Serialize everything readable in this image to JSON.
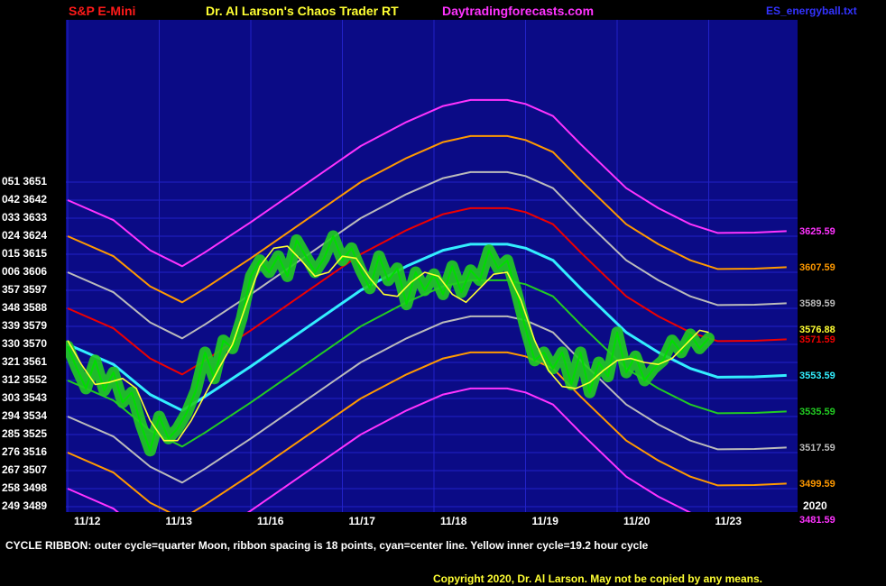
{
  "header": {
    "symbol": "S&P E-Mini",
    "title": "Dr. Al Larson's Chaos Trader RT",
    "site": "Daytradingforecasts.com",
    "file": "ES_energyball.txt"
  },
  "caption": "CYCLE RIBBON: outer cycle=quarter Moon, ribbon spacing is 18 points, cyan=center line. Yellow  inner cycle=19.2 hour cycle",
  "copyright": "Copyright 2020, Dr. Al Larson. May not be copied by any means.",
  "year_label": "2020",
  "colors": {
    "background": "#000000",
    "plot_bg": "#0b0b86",
    "grid": "#2222c8",
    "price_line": "#00dd00",
    "price_glow": "#22cc22",
    "inner_cycle": "#ffff33",
    "header_symbol": "#ff1a1a",
    "header_title": "#ffff33",
    "header_site": "#ff33ff",
    "header_file": "#3333ff",
    "caption": "#ffffff",
    "copyright": "#ffff33"
  },
  "chart_data": {
    "type": "line",
    "title": "Dr. Al Larson's Chaos Trader RT",
    "ylim": [
      3485,
      3656
    ],
    "y_ticks": [
      {
        "value": 3651,
        "label": "051 3651"
      },
      {
        "value": 3642,
        "label": "042 3642"
      },
      {
        "value": 3633,
        "label": "033 3633"
      },
      {
        "value": 3624,
        "label": "024 3624"
      },
      {
        "value": 3615,
        "label": "015 3615"
      },
      {
        "value": 3606,
        "label": "006 3606"
      },
      {
        "value": 3597,
        "label": "357 3597"
      },
      {
        "value": 3588,
        "label": "348 3588"
      },
      {
        "value": 3579,
        "label": "339 3579"
      },
      {
        "value": 3570,
        "label": "330 3570"
      },
      {
        "value": 3561,
        "label": "321 3561"
      },
      {
        "value": 3552,
        "label": "312 3552"
      },
      {
        "value": 3543,
        "label": "303 3543"
      },
      {
        "value": 3534,
        "label": "294 3534"
      },
      {
        "value": 3525,
        "label": "285 3525"
      },
      {
        "value": 3516,
        "label": "276 3516"
      },
      {
        "value": 3507,
        "label": "267 3507"
      },
      {
        "value": 3498,
        "label": "258 3498"
      },
      {
        "value": 3489,
        "label": "249 3489"
      }
    ],
    "x_labels": [
      "11/12",
      "11/13",
      "11/16",
      "11/17",
      "11/18",
      "11/19",
      "11/20",
      "11/23"
    ],
    "x_range": [
      0,
      8.1
    ],
    "ribbon_center": [
      [
        0,
        3570
      ],
      [
        0.5,
        3560
      ],
      [
        0.9,
        3545
      ],
      [
        1.25,
        3537
      ],
      [
        1.5,
        3544
      ],
      [
        2.0,
        3559
      ],
      [
        2.6,
        3578
      ],
      [
        3.2,
        3597
      ],
      [
        3.7,
        3609
      ],
      [
        4.1,
        3617
      ],
      [
        4.4,
        3620
      ],
      [
        4.8,
        3620
      ],
      [
        5.0,
        3618
      ],
      [
        5.3,
        3612
      ],
      [
        5.6,
        3598
      ],
      [
        6.1,
        3576
      ],
      [
        6.45,
        3566
      ],
      [
        6.8,
        3558
      ],
      [
        7.1,
        3553.6
      ],
      [
        7.5,
        3553.8
      ],
      [
        7.85,
        3554.5
      ]
    ],
    "ribbon_offsets": [
      {
        "offset": 72,
        "color": "#ff33ff"
      },
      {
        "offset": 54,
        "color": "#ff9900"
      },
      {
        "offset": 36,
        "color": "#bbbbbb"
      },
      {
        "offset": 18,
        "color": "#ee0000"
      },
      {
        "offset": 0,
        "color": "#33eeff"
      },
      {
        "offset": -18,
        "color": "#22cc22"
      },
      {
        "offset": -36,
        "color": "#bbbbbb"
      },
      {
        "offset": -54,
        "color": "#ff9900"
      },
      {
        "offset": -72,
        "color": "#ff33ff"
      }
    ],
    "right_labels": [
      {
        "value": 3625.59,
        "label": "3625.59",
        "color": "#ff33ff"
      },
      {
        "value": 3607.59,
        "label": "3607.59",
        "color": "#ff9900"
      },
      {
        "value": 3589.59,
        "label": "3589.59",
        "color": "#bbbbbb"
      },
      {
        "value": 3576.88,
        "label": "3576.88",
        "color": "#ffff33"
      },
      {
        "value": 3571.59,
        "label": "3571.59",
        "color": "#ee0000"
      },
      {
        "value": 3553.59,
        "label": "3553.59",
        "color": "#33eeff"
      },
      {
        "value": 3535.59,
        "label": "3535.59",
        "color": "#22cc22"
      },
      {
        "value": 3517.59,
        "label": "3517.59",
        "color": "#bbbbbb"
      },
      {
        "value": 3499.59,
        "label": "3499.59",
        "color": "#ff9900"
      },
      {
        "value": 3481.59,
        "label": "3481.59",
        "color": "#ff33ff"
      }
    ],
    "price_series": [
      [
        0,
        3569
      ],
      [
        0.1,
        3558
      ],
      [
        0.2,
        3548
      ],
      [
        0.3,
        3562
      ],
      [
        0.4,
        3547
      ],
      [
        0.5,
        3556
      ],
      [
        0.6,
        3541
      ],
      [
        0.7,
        3546
      ],
      [
        0.8,
        3530
      ],
      [
        0.9,
        3517
      ],
      [
        1.0,
        3534
      ],
      [
        1.1,
        3523
      ],
      [
        1.2,
        3528
      ],
      [
        1.3,
        3536
      ],
      [
        1.4,
        3547
      ],
      [
        1.5,
        3566
      ],
      [
        1.6,
        3553
      ],
      [
        1.7,
        3572
      ],
      [
        1.8,
        3568
      ],
      [
        1.9,
        3583
      ],
      [
        2.0,
        3604
      ],
      [
        2.1,
        3612
      ],
      [
        2.2,
        3606
      ],
      [
        2.3,
        3614
      ],
      [
        2.4,
        3604
      ],
      [
        2.5,
        3622
      ],
      [
        2.6,
        3614
      ],
      [
        2.7,
        3606
      ],
      [
        2.8,
        3613
      ],
      [
        2.9,
        3624
      ],
      [
        3.0,
        3612
      ],
      [
        3.1,
        3618
      ],
      [
        3.2,
        3607
      ],
      [
        3.3,
        3598
      ],
      [
        3.4,
        3614
      ],
      [
        3.5,
        3602
      ],
      [
        3.6,
        3608
      ],
      [
        3.7,
        3590
      ],
      [
        3.8,
        3606
      ],
      [
        3.9,
        3597
      ],
      [
        4.0,
        3605
      ],
      [
        4.1,
        3595
      ],
      [
        4.2,
        3609
      ],
      [
        4.3,
        3596
      ],
      [
        4.4,
        3607
      ],
      [
        4.5,
        3602
      ],
      [
        4.6,
        3617
      ],
      [
        4.7,
        3608
      ],
      [
        4.8,
        3612
      ],
      [
        4.9,
        3596
      ],
      [
        5.0,
        3578
      ],
      [
        5.1,
        3562
      ],
      [
        5.2,
        3566
      ],
      [
        5.3,
        3558
      ],
      [
        5.4,
        3566
      ],
      [
        5.5,
        3550
      ],
      [
        5.6,
        3566
      ],
      [
        5.7,
        3546
      ],
      [
        5.8,
        3561
      ],
      [
        5.9,
        3554
      ],
      [
        6.0,
        3576
      ],
      [
        6.1,
        3556
      ],
      [
        6.2,
        3564
      ],
      [
        6.3,
        3552
      ],
      [
        6.4,
        3558
      ],
      [
        6.5,
        3562
      ],
      [
        6.6,
        3572
      ],
      [
        6.7,
        3566
      ],
      [
        6.8,
        3575
      ],
      [
        6.9,
        3568
      ],
      [
        7.0,
        3573
      ]
    ],
    "inner_cycle": [
      [
        0,
        3572
      ],
      [
        0.15,
        3560
      ],
      [
        0.3,
        3550
      ],
      [
        0.45,
        3551
      ],
      [
        0.6,
        3553
      ],
      [
        0.75,
        3548
      ],
      [
        0.9,
        3532
      ],
      [
        1.05,
        3522
      ],
      [
        1.2,
        3522
      ],
      [
        1.35,
        3532
      ],
      [
        1.5,
        3545
      ],
      [
        1.65,
        3558
      ],
      [
        1.8,
        3570
      ],
      [
        1.95,
        3590
      ],
      [
        2.1,
        3609
      ],
      [
        2.25,
        3618
      ],
      [
        2.4,
        3619
      ],
      [
        2.55,
        3612
      ],
      [
        2.7,
        3604
      ],
      [
        2.85,
        3606
      ],
      [
        3.0,
        3614
      ],
      [
        3.15,
        3613
      ],
      [
        3.3,
        3603
      ],
      [
        3.45,
        3595
      ],
      [
        3.6,
        3594
      ],
      [
        3.75,
        3601
      ],
      [
        3.9,
        3606
      ],
      [
        4.05,
        3604
      ],
      [
        4.2,
        3595
      ],
      [
        4.35,
        3591
      ],
      [
        4.5,
        3598
      ],
      [
        4.65,
        3605
      ],
      [
        4.8,
        3606
      ],
      [
        4.95,
        3592
      ],
      [
        5.1,
        3572
      ],
      [
        5.25,
        3557
      ],
      [
        5.4,
        3549
      ],
      [
        5.55,
        3548
      ],
      [
        5.7,
        3551
      ],
      [
        5.85,
        3557
      ],
      [
        6.0,
        3562
      ],
      [
        6.15,
        3563
      ],
      [
        6.3,
        3561
      ],
      [
        6.45,
        3560
      ],
      [
        6.6,
        3563
      ],
      [
        6.75,
        3570
      ],
      [
        6.9,
        3577
      ],
      [
        7.0,
        3576
      ]
    ]
  }
}
